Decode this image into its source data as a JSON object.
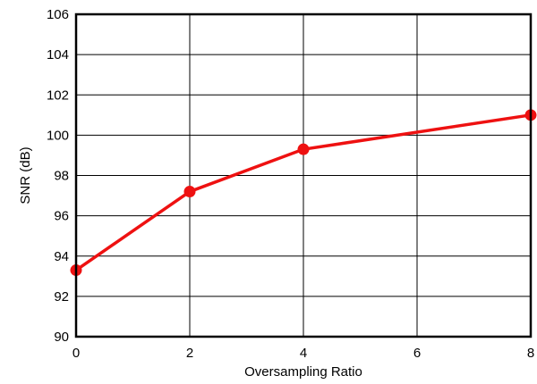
{
  "chart_data": {
    "type": "line",
    "title": "",
    "xlabel": "Oversampling Ratio",
    "ylabel": "SNR (dB)",
    "xlim": [
      0,
      8
    ],
    "ylim": [
      90,
      106
    ],
    "xticks": [
      0,
      2,
      4,
      6,
      8
    ],
    "yticks": [
      90,
      92,
      94,
      96,
      98,
      100,
      102,
      104,
      106
    ],
    "grid": true,
    "legend": "none",
    "series": [
      {
        "color": "#ee1111",
        "x": [
          0,
          2,
          4,
          8
        ],
        "y": [
          93.3,
          97.2,
          99.3,
          101.0
        ]
      }
    ]
  }
}
